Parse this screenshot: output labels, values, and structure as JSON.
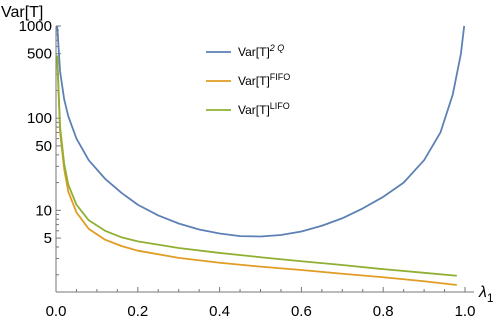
{
  "chart_data": {
    "type": "line",
    "ylabel": "Var[T]",
    "xlabel_base": "λ",
    "xlabel_sub": "1",
    "xlim": [
      0,
      1
    ],
    "ylim": [
      1.3,
      1000
    ],
    "yscale": "log",
    "x_ticks": [
      "0.0",
      "0.2",
      "0.4",
      "0.6",
      "0.8",
      "1.0"
    ],
    "y_ticks": [
      "1000",
      "500",
      "100",
      "50",
      "10",
      "5"
    ],
    "legend_position": "top-center",
    "series": [
      {
        "name": "Var[T]",
        "name_sup": "2 Q",
        "color": "#5E81B5",
        "points": [
          [
            0.003,
            1000
          ],
          [
            0.01,
            320
          ],
          [
            0.02,
            160
          ],
          [
            0.03,
            105
          ],
          [
            0.05,
            60
          ],
          [
            0.08,
            35
          ],
          [
            0.12,
            22
          ],
          [
            0.16,
            15.5
          ],
          [
            0.2,
            11.5
          ],
          [
            0.25,
            8.8
          ],
          [
            0.3,
            7.2
          ],
          [
            0.35,
            6.2
          ],
          [
            0.4,
            5.6
          ],
          [
            0.45,
            5.25
          ],
          [
            0.5,
            5.2
          ],
          [
            0.55,
            5.4
          ],
          [
            0.6,
            5.9
          ],
          [
            0.65,
            6.8
          ],
          [
            0.7,
            8.2
          ],
          [
            0.75,
            10.5
          ],
          [
            0.8,
            14
          ],
          [
            0.85,
            20
          ],
          [
            0.9,
            35
          ],
          [
            0.94,
            70
          ],
          [
            0.97,
            180
          ],
          [
            0.99,
            500
          ],
          [
            0.998,
            1000
          ]
        ]
      },
      {
        "name": "Var[T]",
        "name_sup": "FIFO",
        "color": "#E19C24",
        "points": [
          [
            0.003,
            450
          ],
          [
            0.01,
            70
          ],
          [
            0.02,
            28
          ],
          [
            0.03,
            16
          ],
          [
            0.05,
            9.5
          ],
          [
            0.08,
            6.3
          ],
          [
            0.12,
            4.8
          ],
          [
            0.16,
            4.1
          ],
          [
            0.2,
            3.65
          ],
          [
            0.3,
            3.05
          ],
          [
            0.4,
            2.7
          ],
          [
            0.5,
            2.45
          ],
          [
            0.6,
            2.25
          ],
          [
            0.7,
            2.05
          ],
          [
            0.8,
            1.88
          ],
          [
            0.9,
            1.7
          ],
          [
            0.98,
            1.55
          ]
        ]
      },
      {
        "name": "Var[T]",
        "name_sup": "LIFO",
        "color": "#8FB032",
        "points": [
          [
            0.003,
            480
          ],
          [
            0.01,
            80
          ],
          [
            0.02,
            32
          ],
          [
            0.03,
            19
          ],
          [
            0.05,
            11.5
          ],
          [
            0.08,
            7.8
          ],
          [
            0.12,
            6.0
          ],
          [
            0.16,
            5.1
          ],
          [
            0.2,
            4.6
          ],
          [
            0.3,
            3.9
          ],
          [
            0.4,
            3.45
          ],
          [
            0.5,
            3.1
          ],
          [
            0.6,
            2.8
          ],
          [
            0.7,
            2.55
          ],
          [
            0.8,
            2.3
          ],
          [
            0.9,
            2.1
          ],
          [
            0.98,
            1.95
          ]
        ]
      }
    ]
  }
}
